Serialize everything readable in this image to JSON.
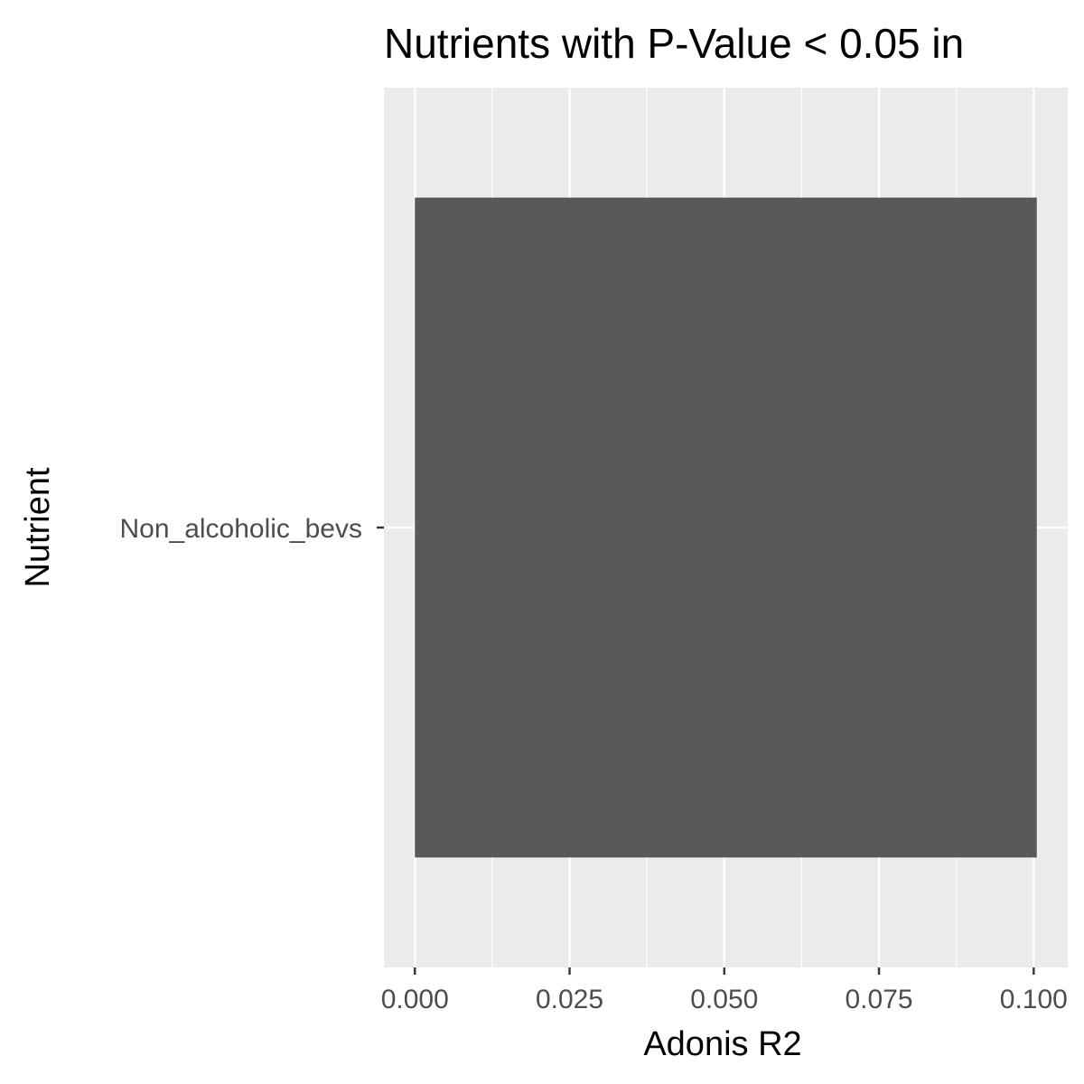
{
  "chart_data": {
    "type": "bar",
    "orientation": "horizontal",
    "title": "Nutrients with P-Value < 0.05 in",
    "xlabel": "Adonis R2",
    "ylabel": "Nutrient",
    "categories": [
      "Non_alcoholic_bevs"
    ],
    "values": [
      0.1005
    ],
    "xlim": [
      -0.005,
      0.1055
    ],
    "xticks": [
      0.0,
      0.025,
      0.05,
      0.075,
      0.1
    ],
    "xtick_labels": [
      "0.000",
      "0.025",
      "0.050",
      "0.075",
      "0.100"
    ],
    "grid": true,
    "legend": "none",
    "colors": {
      "bar": "#595959",
      "panel": "#ebebeb",
      "grid_major": "#ffffff",
      "tick_label": "#4d4d4d",
      "tick_mark": "#333333"
    }
  }
}
